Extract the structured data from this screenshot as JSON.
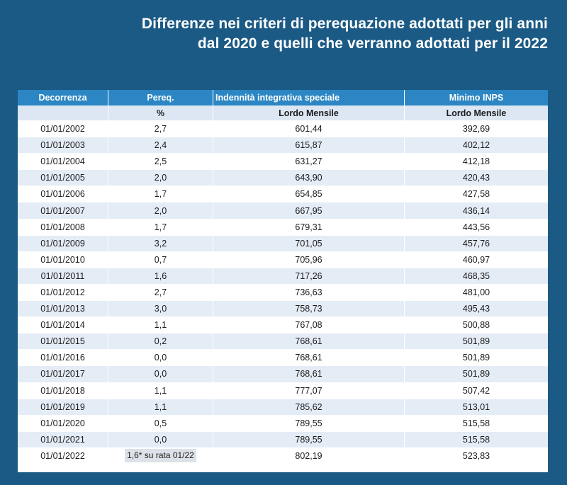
{
  "title": {
    "line1": "Differenze nei criteri di perequazione adottati per gli anni",
    "line2": "dal 2020 e quelli che verranno adottati per il 2022"
  },
  "table": {
    "headers": [
      "Decorrenza",
      "Pereq.",
      "Indennità integrativa speciale",
      "Minimo INPS"
    ],
    "subheaders": [
      "",
      "%",
      "Lordo Mensile",
      "Lordo Mensile"
    ],
    "rows": [
      [
        "01/01/2002",
        "2,7",
        "601,44",
        "392,69"
      ],
      [
        "01/01/2003",
        "2,4",
        "615,87",
        "402,12"
      ],
      [
        "01/01/2004",
        "2,5",
        "631,27",
        "412,18"
      ],
      [
        "01/01/2005",
        "2,0",
        "643,90",
        "420,43"
      ],
      [
        "01/01/2006",
        "1,7",
        "654,85",
        "427,58"
      ],
      [
        "01/01/2007",
        "2,0",
        "667,95",
        "436,14"
      ],
      [
        "01/01/2008",
        "1,7",
        "679,31",
        "443,56"
      ],
      [
        "01/01/2009",
        "3,2",
        "701,05",
        "457,76"
      ],
      [
        "01/01/2010",
        "0,7",
        "705,96",
        "460,97"
      ],
      [
        "01/01/2011",
        "1,6",
        "717,26",
        "468,35"
      ],
      [
        "01/01/2012",
        "2,7",
        "736,63",
        "481,00"
      ],
      [
        "01/01/2013",
        "3,0",
        "758,73",
        "495,43"
      ],
      [
        "01/01/2014",
        "1,1",
        "767,08",
        "500,88"
      ],
      [
        "01/01/2015",
        "0,2",
        "768,61",
        "501,89"
      ],
      [
        "01/01/2016",
        "0,0",
        "768,61",
        "501,89"
      ],
      [
        "01/01/2017",
        "0,0",
        "768,61",
        "501,89"
      ],
      [
        "01/01/2018",
        "1,1",
        "777,07",
        "507,42"
      ],
      [
        "01/01/2019",
        "1,1",
        "785,62",
        "513,01"
      ],
      [
        "01/01/2020",
        "0,5",
        "789,55",
        "515,58"
      ],
      [
        "01/01/2021",
        "0,0",
        "789,55",
        "515,58"
      ],
      [
        "01/01/2022",
        "1,6* su rata 01/22",
        "802,19",
        "523,83"
      ]
    ]
  },
  "colors": {
    "background": "#1b5a85",
    "header": "#2b86c3",
    "subheader": "#dce7f3",
    "stripe": "#e4ecf6"
  }
}
